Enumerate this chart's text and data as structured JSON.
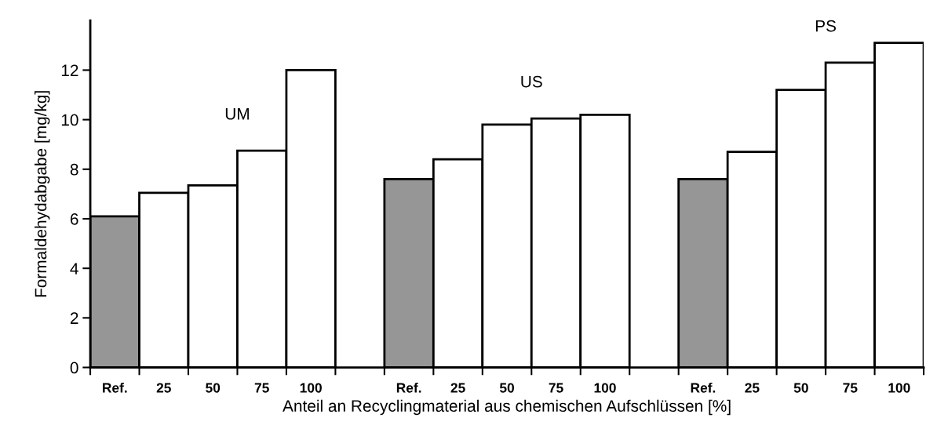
{
  "chart_data": {
    "type": "bar",
    "xlabel": "Anteil an Recyclingmaterial aus chemischen Aufschlüssen [%]",
    "ylabel": "Formaldehydabgabe [mg/kg]",
    "categories": [
      "Ref.",
      "25",
      "50",
      "75",
      "100",
      null,
      "Ref.",
      "25",
      "50",
      "75",
      "100",
      null,
      "Ref.",
      "25",
      "50",
      "75",
      "100"
    ],
    "values": [
      6.1,
      7.05,
      7.35,
      8.75,
      12.0,
      null,
      7.6,
      8.4,
      9.8,
      10.05,
      10.2,
      null,
      7.6,
      8.7,
      11.2,
      12.3,
      13.1
    ],
    "colors": [
      "#969696",
      "#ffffff",
      "#ffffff",
      "#ffffff",
      "#ffffff",
      "#ffffff",
      "#969696",
      "#ffffff",
      "#ffffff",
      "#ffffff",
      "#ffffff",
      "#ffffff",
      "#969696",
      "#ffffff",
      "#ffffff",
      "#ffffff",
      "#ffffff"
    ],
    "annotations": [
      "UM",
      "US",
      "PS"
    ],
    "ylim": [
      0,
      14
    ],
    "yticks": [
      0,
      2,
      4,
      6,
      8,
      10,
      12
    ],
    "grid": false,
    "legend": false
  }
}
